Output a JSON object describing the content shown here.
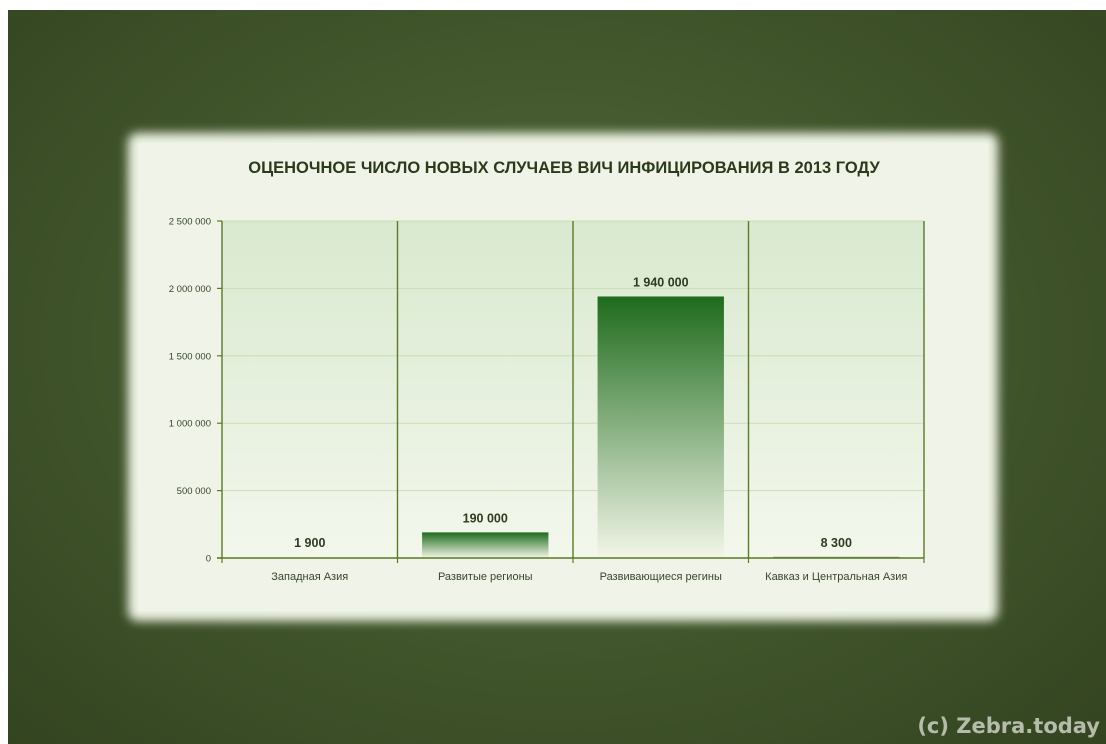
{
  "watermark": "(c) Zebra.today",
  "chart_data": {
    "type": "bar",
    "title": "ОЦЕНОЧНОЕ ЧИСЛО НОВЫХ СЛУЧАЕВ ВИЧ ИНФИЦИРОВАНИЯ В 2013 ГОДУ",
    "categories": [
      "Западная Азия",
      "Развитые регионы",
      "Развивающиеся регины",
      "Кавказ и Центральная Азия"
    ],
    "values": [
      1900,
      190000,
      1940000,
      8300
    ],
    "data_labels": [
      "1 900",
      "190 000",
      "1 940 000",
      "8 300"
    ],
    "yticks": [
      "0",
      "500 000",
      "1 000 000",
      "1 500 000",
      "2 000 000",
      "2 500 000"
    ],
    "ylim": [
      0,
      2500000
    ],
    "xlabel": "",
    "ylabel": "",
    "grid": true,
    "legend": "none",
    "colors": {
      "bar_top": "#1e6b1c",
      "bar_bottom": "#f2f6e8",
      "plot_bg_top": "#d9e9cf",
      "plot_bg_bottom": "#f3f7ec",
      "axis": "#5b7a24",
      "grid": "#c9deb6"
    }
  }
}
